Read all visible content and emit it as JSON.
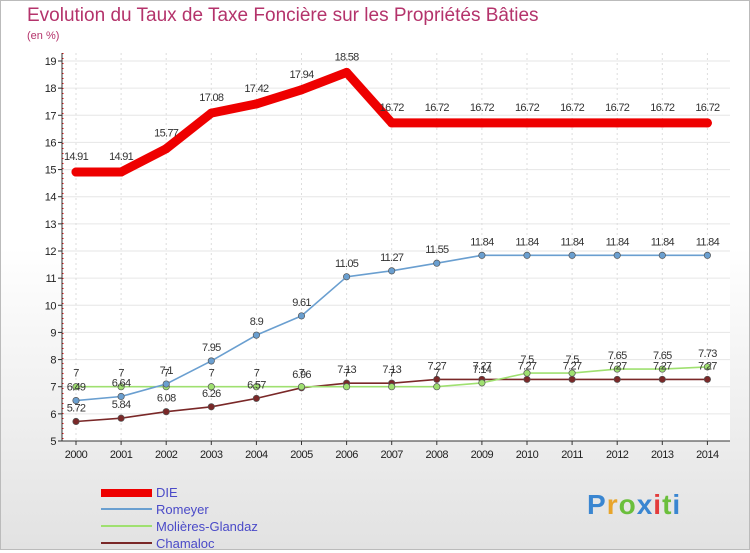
{
  "chart_data": {
    "type": "line",
    "title": "Evolution du Taux de Taxe Foncière sur les Propriétés Bâties",
    "unit_label": "(en %)",
    "xlabel": "",
    "ylabel": "",
    "ylim": [
      5,
      19
    ],
    "yticks": [
      "5",
      "6",
      "7",
      "8",
      "9",
      "10",
      "11",
      "12",
      "13",
      "14",
      "15",
      "16",
      "17",
      "18",
      "19"
    ],
    "categories": [
      "2000",
      "2001",
      "2002",
      "2003",
      "2004",
      "2005",
      "2006",
      "2007",
      "2008",
      "2009",
      "2010",
      "2011",
      "2012",
      "2013",
      "2014"
    ],
    "series": [
      {
        "name": "DIE",
        "color": "#ee0000",
        "values": [
          14.91,
          14.91,
          15.77,
          17.08,
          17.42,
          17.94,
          18.58,
          16.72,
          16.72,
          16.72,
          16.72,
          16.72,
          16.72,
          16.72,
          16.72
        ],
        "labels": [
          "14.91",
          "14.91",
          "15.77",
          "17.08",
          "17.42",
          "17.94",
          "18.58",
          "16.72",
          "16.72",
          "16.72",
          "16.72",
          "16.72",
          "16.72",
          "16.72",
          "16.72"
        ]
      },
      {
        "name": "Romeyer",
        "color": "#6a9fd0",
        "values": [
          6.49,
          6.64,
          7.1,
          7.95,
          8.9,
          9.61,
          11.05,
          11.27,
          11.55,
          11.84,
          11.84,
          11.84,
          11.84,
          11.84,
          11.84
        ],
        "labels": [
          "6.49",
          "6.64",
          "7.1",
          "7.95",
          "8.9",
          "9.61",
          "11.05",
          "11.27",
          "11.55",
          "11.84",
          "11.84",
          "11.84",
          "11.84",
          "11.84",
          "11.84"
        ]
      },
      {
        "name": "Molières-Glandaz",
        "color": "#9fe070",
        "values": [
          7,
          7,
          7,
          7,
          7,
          7,
          7,
          7,
          7,
          7.14,
          7.5,
          7.5,
          7.65,
          7.65,
          7.73
        ],
        "labels": [
          "7",
          "7",
          "7",
          "7",
          "7",
          "7",
          "7",
          "7",
          "7",
          "7.14",
          "7.5",
          "7.5",
          "7.65",
          "7.65",
          "7.73"
        ]
      },
      {
        "name": "Chamaloc",
        "color": "#7a2828",
        "values": [
          5.72,
          5.84,
          6.08,
          6.26,
          6.57,
          6.96,
          7.13,
          7.13,
          7.27,
          7.27,
          7.27,
          7.27,
          7.27,
          7.27,
          7.27
        ],
        "labels": [
          "5.72",
          "5.84",
          "6.08",
          "6.26",
          "6.57",
          "6.96",
          "7.13",
          "7.13",
          "7.27",
          "7.27",
          "7.27",
          "7.27",
          "7.27",
          "7.27",
          "7.27"
        ]
      }
    ]
  },
  "branding": {
    "logo_letters": [
      "P",
      "r",
      "o",
      "x",
      "i",
      "t",
      "i"
    ]
  }
}
